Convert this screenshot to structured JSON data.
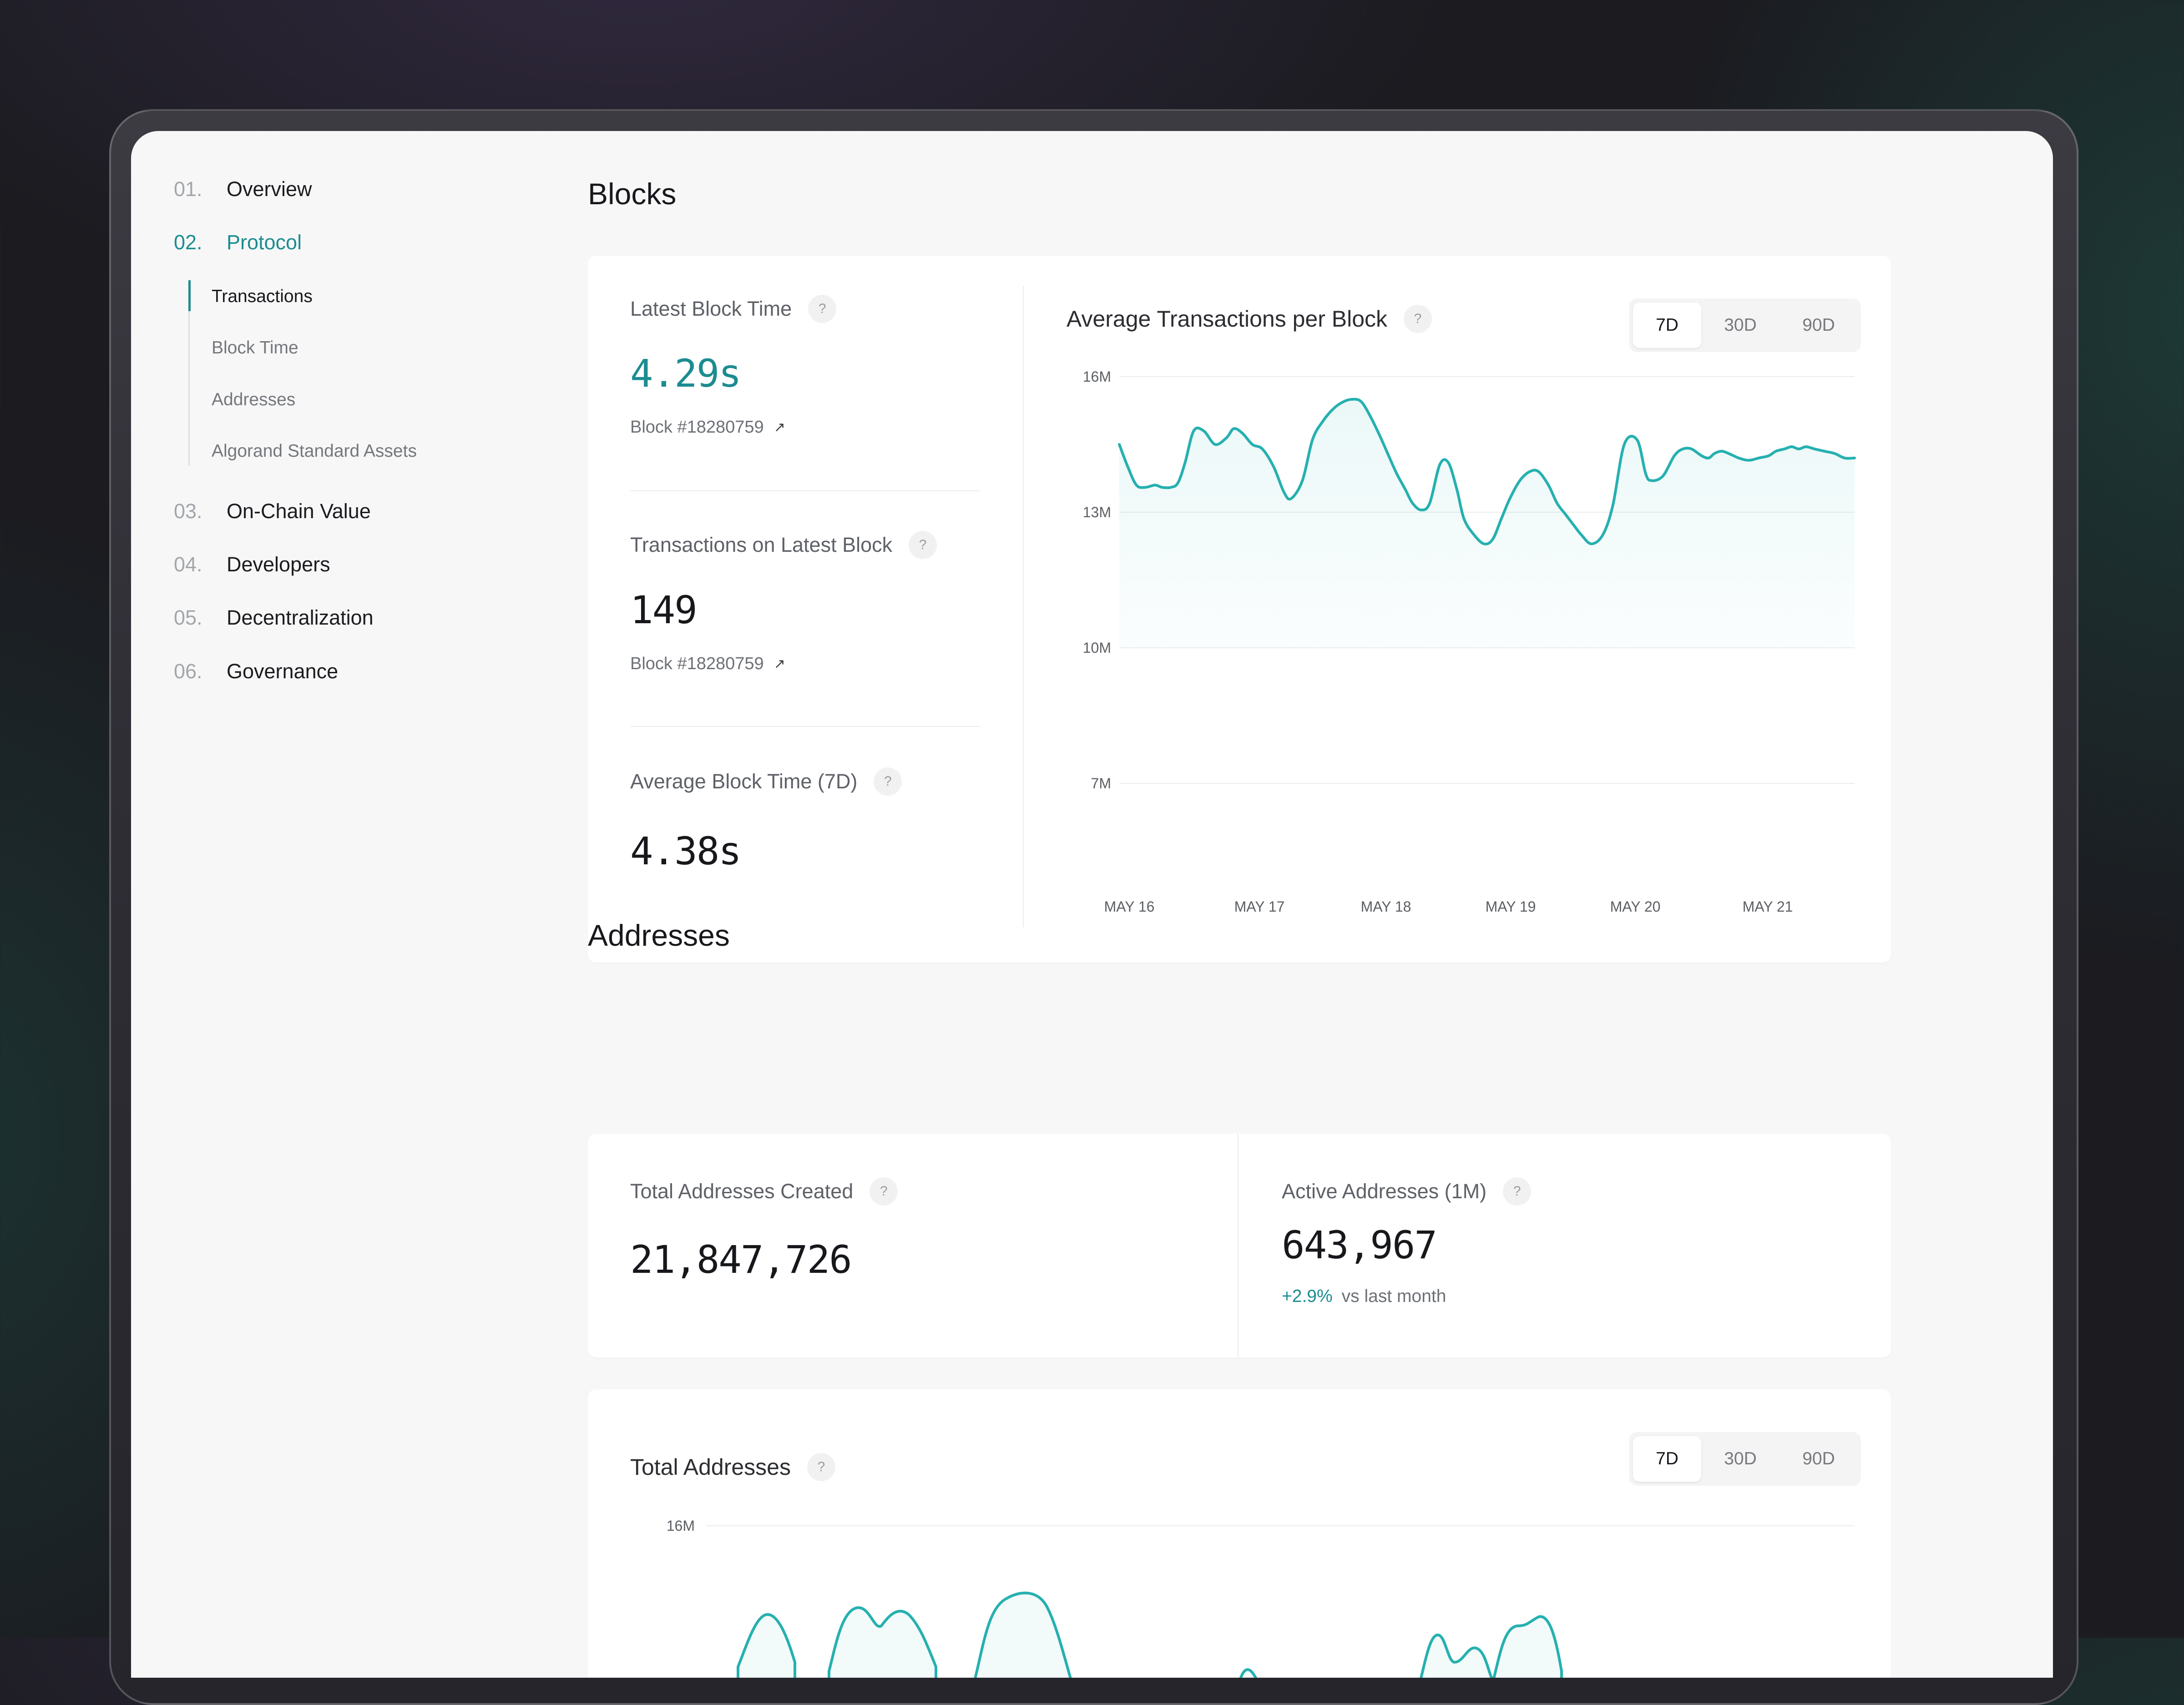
{
  "sidebar": {
    "items": [
      {
        "num": "01.",
        "label": "Overview"
      },
      {
        "num": "02.",
        "label": "Protocol"
      },
      {
        "num": "03.",
        "label": "On-Chain Value"
      },
      {
        "num": "04.",
        "label": "Developers"
      },
      {
        "num": "05.",
        "label": "Decentralization"
      },
      {
        "num": "06.",
        "label": "Governance"
      }
    ],
    "sub_items": [
      "Transactions",
      "Block Time",
      "Addresses",
      "Algorand Standard Assets"
    ]
  },
  "blocks": {
    "title": "Blocks",
    "latest_block_time": {
      "label": "Latest Block Time",
      "value": "4.29s",
      "link": "Block #18280759"
    },
    "tx_latest_block": {
      "label": "Transactions on Latest Block",
      "value": "149",
      "link": "Block #18280759"
    },
    "avg_block_time": {
      "label": "Average Block Time (7D)",
      "value": "4.38s"
    },
    "help": "?"
  },
  "tx_chart": {
    "title": "Average Transactions per Block",
    "ranges": [
      "7D",
      "30D",
      "90D"
    ],
    "selected_range": "7D"
  },
  "addresses": {
    "title": "Addresses",
    "total_created": {
      "label": "Total Addresses Created",
      "value": "21,847,726"
    },
    "active": {
      "label": "Active Addresses (1M)",
      "value": "643,967",
      "change": "+2.9%",
      "change_note": "vs last month"
    }
  },
  "total_chart": {
    "title": "Total Addresses",
    "ranges": [
      "7D",
      "30D",
      "90D"
    ],
    "selected_range": "7D"
  },
  "colors": {
    "accent": "#1c8c90",
    "line": "#26b0b0"
  },
  "chart_data": [
    {
      "type": "line",
      "title": "Average Transactions per Block",
      "x_ticks": [
        "MAY 16",
        "MAY 17",
        "MAY 18",
        "MAY 19",
        "MAY 20",
        "MAY 21"
      ],
      "y_ticks": [
        "16M",
        "13M",
        "10M",
        "7M"
      ],
      "ylim": [
        7,
        16
      ],
      "unit": "M",
      "x": [
        0,
        0.06,
        0.12,
        0.18,
        0.25,
        0.3,
        0.36,
        0.41,
        0.46,
        0.52,
        0.59,
        0.67,
        0.75,
        0.8,
        0.86,
        0.93,
        1.0,
        1.08,
        1.15,
        1.2,
        1.28,
        1.35,
        1.42,
        1.5,
        1.57,
        1.63,
        1.69,
        1.75,
        1.82,
        1.89,
        1.94,
        2.0,
        2.05,
        2.11,
        2.17,
        2.24,
        2.3,
        2.36,
        2.41,
        2.48,
        2.55,
        2.61,
        2.67,
        2.73,
        2.8,
        2.87,
        2.93,
        3.0,
        3.06,
        3.12,
        3.18,
        3.23,
        3.3,
        3.38,
        3.45,
        3.53,
        3.62,
        3.68,
        3.72,
        3.8,
        3.88,
        3.94,
        4.0,
        4.07,
        4.12,
        4.16,
        4.21,
        4.26,
        4.33,
        4.4,
        4.47,
        4.54,
        4.59,
        4.65,
        4.7,
        4.75,
        4.8,
        4.86,
        4.93,
        5.0,
        5.07,
        5.14
      ],
      "series": [
        {
          "values": [
            14.5,
            14.0,
            13.6,
            13.55,
            13.6,
            13.55,
            13.55,
            13.65,
            14.1,
            14.8,
            14.8,
            14.5,
            14.65,
            14.85,
            14.75,
            14.5,
            14.4,
            14.0,
            13.45,
            13.3,
            13.7,
            14.6,
            15.0,
            15.3,
            15.45,
            15.5,
            15.45,
            15.15,
            14.7,
            14.2,
            13.85,
            13.5,
            13.2,
            13.05,
            13.2,
            14.05,
            14.1,
            13.5,
            12.85,
            12.5,
            12.3,
            12.4,
            12.85,
            13.3,
            13.7,
            13.9,
            13.9,
            13.6,
            13.2,
            12.95,
            12.7,
            12.5,
            12.3,
            12.5,
            13.15,
            14.5,
            14.6,
            13.85,
            13.7,
            13.8,
            14.25,
            14.4,
            14.4,
            14.25,
            14.2,
            14.3,
            14.35,
            14.3,
            14.2,
            14.15,
            14.2,
            14.25,
            14.35,
            14.4,
            14.45,
            14.4,
            14.45,
            14.4,
            14.35,
            14.3,
            14.2,
            14.2
          ]
        }
      ]
    },
    {
      "type": "area",
      "title": "Total Addresses",
      "y_ticks": [
        "16M"
      ]
    }
  ]
}
